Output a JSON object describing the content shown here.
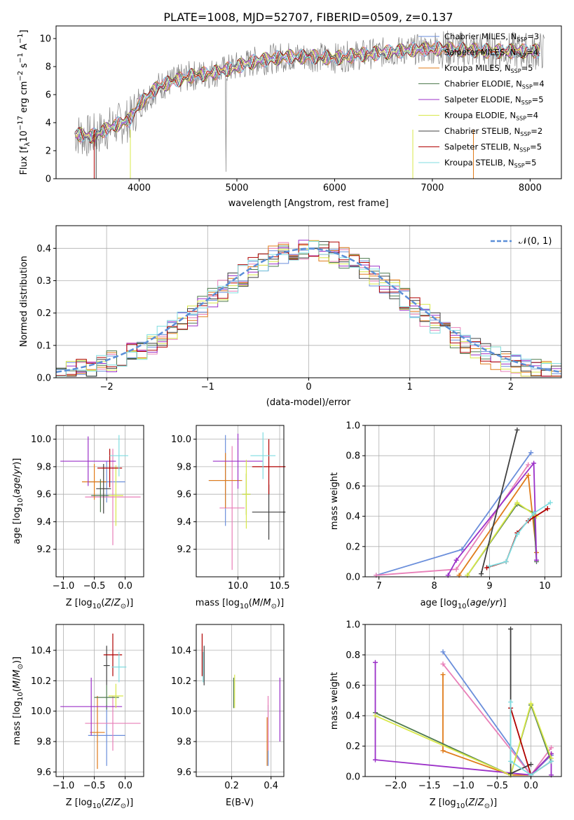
{
  "figure": {
    "title": "PLATE=1008, MJD=52707, FIBERID=0509, z=0.137"
  },
  "colors": {
    "chabrier_miles": "#6a8edb",
    "salpeter_miles": "#e87fb8",
    "kroupa_miles": "#e07b1a",
    "chabrier_elodie": "#4e7a4e",
    "salpeter_elodie": "#9b30c8",
    "kroupa_elodie": "#d8e84a",
    "chabrier_stelib": "#404040",
    "salpeter_stelib": "#b00000",
    "kroupa_stelib": "#7fdde0",
    "data_spectrum": "#808080",
    "normal_curve": "#5b8fd8",
    "grid": "#b0b0b0"
  },
  "legend": {
    "entries": [
      {
        "label": "Chabrier MILES, N",
        "sub": "SSP",
        "tail": "=3",
        "color": "#6a8edb"
      },
      {
        "label": "Salpeter MILES, N",
        "sub": "SSP",
        "tail": "=4",
        "color": "#e87fb8"
      },
      {
        "label": "Kroupa MILES, N",
        "sub": "SSP",
        "tail": "=5",
        "color": "#e07b1a"
      },
      {
        "label": "Chabrier ELODIE, N",
        "sub": "SSP",
        "tail": "=4",
        "color": "#4e7a4e"
      },
      {
        "label": "Salpeter ELODIE, N",
        "sub": "SSP",
        "tail": "=5",
        "color": "#9b30c8"
      },
      {
        "label": "Kroupa ELODIE, N",
        "sub": "SSP",
        "tail": "=4",
        "color": "#d8e84a"
      },
      {
        "label": "Chabrier STELIB, N",
        "sub": "SSP",
        "tail": "=2",
        "color": "#404040"
      },
      {
        "label": "Salpeter STELIB, N",
        "sub": "SSP",
        "tail": "=5",
        "color": "#b00000"
      },
      {
        "label": "Kroupa STELIB, N",
        "sub": "SSP",
        "tail": "=5",
        "color": "#7fdde0"
      }
    ],
    "normal_label": "𝒩(0, 1)"
  },
  "chart_data": [
    {
      "id": "spectrum",
      "type": "line",
      "xlabel": "wavelength [Angstrom, rest frame]",
      "ylabel": "Flux [f",
      "ylabel_parts": {
        "lambda": "λ",
        "tenpow": "10",
        "exp": "−17",
        "units": " erg cm",
        "m2": "−2",
        "s": " s",
        "m1": "−1",
        "A": " A",
        "m1b": "−1",
        "close": "]"
      },
      "xlim": [
        3150,
        8320
      ],
      "ylim": [
        0,
        10.9
      ],
      "xticks": [
        4000,
        5000,
        6000,
        7000,
        8000
      ],
      "yticks": [
        0,
        2,
        4,
        6,
        8,
        10
      ],
      "continuum_knots": [
        [
          3350,
          3.2
        ],
        [
          3500,
          3.0
        ],
        [
          3600,
          3.3
        ],
        [
          3750,
          3.8
        ],
        [
          3900,
          4.2
        ],
        [
          4000,
          5.3
        ],
        [
          4200,
          6.6
        ],
        [
          4500,
          7.3
        ],
        [
          4800,
          7.6
        ],
        [
          5000,
          8.0
        ],
        [
          5200,
          8.4
        ],
        [
          5500,
          8.7
        ],
        [
          5800,
          8.7
        ],
        [
          6000,
          8.6
        ],
        [
          6200,
          8.8
        ],
        [
          6500,
          9.0
        ],
        [
          6800,
          9.2
        ],
        [
          7000,
          9.3
        ],
        [
          7300,
          9.2
        ],
        [
          7600,
          9.1
        ],
        [
          7900,
          9.1
        ],
        [
          8100,
          9.1
        ]
      ],
      "data_range": [
        3340,
        8150
      ],
      "model_range": [
        3350,
        8100
      ]
    },
    {
      "id": "residual_histogram",
      "type": "histogram",
      "xlabel": "(data-model)/error",
      "ylabel": "Normed distribution",
      "xlim": [
        -2.5,
        2.5
      ],
      "ylim": [
        0,
        0.47
      ],
      "xticks": [
        -2,
        -1,
        0,
        1,
        2
      ],
      "yticks": [
        0.0,
        0.1,
        0.2,
        0.3,
        0.4
      ],
      "bin_width": 0.1,
      "normal": {
        "mu": 0,
        "sigma": 1
      }
    },
    {
      "id": "age_vs_Z",
      "type": "errorbar",
      "xlabel": "Z [log10(Z/Z⊙)]",
      "ylabel": "age  [log10(age/yr)]",
      "xlim": [
        -1.12,
        0.3
      ],
      "ylim": [
        9.0,
        10.1
      ],
      "xticks": [
        -1.0,
        -0.5,
        0.0
      ],
      "yticks": [
        9.2,
        9.4,
        9.6,
        9.8,
        10.0
      ],
      "points": [
        {
          "series": "chabrier_miles",
          "x": -0.3,
          "xerr": 0.3,
          "y": 9.69,
          "yerr": 0.15
        },
        {
          "series": "salpeter_miles",
          "x": -0.2,
          "xerr": 0.45,
          "y": 9.58,
          "yerr": 0.35
        },
        {
          "series": "kroupa_miles",
          "x": -0.5,
          "xerr": 0.2,
          "y": 9.69,
          "yerr": 0.13
        },
        {
          "series": "chabrier_elodie",
          "x": -0.4,
          "xerr": 0.15,
          "y": 9.59,
          "yerr": 0.12
        },
        {
          "series": "salpeter_elodie",
          "x": -0.6,
          "xerr": 0.45,
          "y": 9.84,
          "yerr": 0.18
        },
        {
          "series": "kroupa_elodie",
          "x": -0.15,
          "xerr": 0.12,
          "y": 9.59,
          "yerr": 0.22
        },
        {
          "series": "chabrier_stelib",
          "x": -0.35,
          "xerr": 0.12,
          "y": 9.64,
          "yerr": 0.18
        },
        {
          "series": "salpeter_stelib",
          "x": -0.25,
          "xerr": 0.2,
          "y": 9.79,
          "yerr": 0.14
        },
        {
          "series": "kroupa_stelib",
          "x": -0.1,
          "xerr": 0.15,
          "y": 9.88,
          "yerr": 0.15
        }
      ]
    },
    {
      "id": "age_vs_mass",
      "type": "errorbar",
      "xlabel": "mass [log10(M/M⊙)]",
      "ylabel": "",
      "xlim": [
        9.5,
        10.55
      ],
      "ylim": [
        9.0,
        10.1
      ],
      "xticks": [
        10.0,
        10.5
      ],
      "yticks": [
        9.2,
        9.4,
        9.6,
        9.8,
        10.0
      ],
      "points": [
        {
          "series": "chabrier_miles",
          "x": 9.85,
          "xerr": 0.2,
          "y": 9.7,
          "yerr": 0.33
        },
        {
          "series": "salpeter_miles",
          "x": 9.93,
          "xerr": 0.15,
          "y": 9.5,
          "yerr": 0.45
        },
        {
          "series": "kroupa_miles",
          "x": 9.85,
          "xerr": 0.2,
          "y": 9.7,
          "yerr": 0.2
        },
        {
          "series": "chabrier_elodie",
          "x": 10.1,
          "xerr": 0.05,
          "y": 9.6,
          "yerr": 0.15
        },
        {
          "series": "salpeter_elodie",
          "x": 10.0,
          "xerr": 0.3,
          "y": 9.84,
          "yerr": 0.2
        },
        {
          "series": "kroupa_elodie",
          "x": 10.1,
          "xerr": 0.05,
          "y": 9.6,
          "yerr": 0.25
        },
        {
          "series": "chabrier_stelib",
          "x": 10.37,
          "xerr": 0.2,
          "y": 9.47,
          "yerr": 0.2
        },
        {
          "series": "salpeter_stelib",
          "x": 10.37,
          "xerr": 0.2,
          "y": 9.8,
          "yerr": 0.2
        },
        {
          "series": "kroupa_stelib",
          "x": 10.3,
          "xerr": 0.15,
          "y": 9.88,
          "yerr": 0.17
        }
      ]
    },
    {
      "id": "weight_vs_age",
      "type": "line",
      "xlabel": "age  [log10(age/yr)]",
      "ylabel": "mass weight",
      "xlim": [
        6.75,
        10.3
      ],
      "ylim": [
        0,
        1.0
      ],
      "xticks": [
        7,
        8,
        9,
        10
      ],
      "yticks": [
        0.0,
        0.2,
        0.4,
        0.6,
        0.8,
        1.0
      ],
      "series": [
        {
          "name": "chabrier_miles",
          "points": [
            [
              6.95,
              0.01
            ],
            [
              8.5,
              0.18
            ],
            [
              9.75,
              0.82
            ]
          ]
        },
        {
          "name": "salpeter_miles",
          "points": [
            [
              6.95,
              0.01
            ],
            [
              8.4,
              0.05
            ],
            [
              9.7,
              0.74
            ]
          ]
        },
        {
          "name": "kroupa_miles",
          "points": [
            [
              8.45,
              0.01
            ],
            [
              9.7,
              0.67
            ],
            [
              9.85,
              0.16
            ]
          ]
        },
        {
          "name": "chabrier_elodie",
          "points": [
            [
              8.6,
              0.01
            ],
            [
              9.5,
              0.48
            ],
            [
              9.8,
              0.42
            ],
            [
              9.85,
              0.1
            ]
          ]
        },
        {
          "name": "salpeter_elodie",
          "points": [
            [
              8.25,
              0.01
            ],
            [
              8.4,
              0.11
            ],
            [
              9.8,
              0.75
            ],
            [
              9.85,
              0.11
            ]
          ]
        },
        {
          "name": "kroupa_elodie",
          "points": [
            [
              8.6,
              0.01
            ],
            [
              9.5,
              0.49
            ],
            [
              9.85,
              0.4
            ]
          ]
        },
        {
          "name": "chabrier_stelib",
          "points": [
            [
              8.85,
              0.02
            ],
            [
              9.5,
              0.97
            ]
          ]
        },
        {
          "name": "salpeter_stelib",
          "points": [
            [
              8.95,
              0.06
            ],
            [
              9.3,
              0.1
            ],
            [
              9.5,
              0.29
            ],
            [
              9.7,
              0.37
            ],
            [
              10.05,
              0.45
            ]
          ]
        },
        {
          "name": "kroupa_stelib",
          "points": [
            [
              9.0,
              0.07
            ],
            [
              9.3,
              0.1
            ],
            [
              9.5,
              0.28
            ],
            [
              9.8,
              0.42
            ],
            [
              10.1,
              0.49
            ]
          ]
        }
      ]
    },
    {
      "id": "mass_vs_Z",
      "type": "errorbar",
      "xlabel": "Z [log10(Z/Z⊙)]",
      "ylabel": "mass [log10(M/M⊙)]",
      "xlim": [
        -1.12,
        0.3
      ],
      "ylim": [
        9.57,
        10.57
      ],
      "xticks": [
        -1.0,
        -0.5,
        0.0
      ],
      "yticks": [
        9.6,
        9.8,
        10.0,
        10.2,
        10.4
      ],
      "points": [
        {
          "series": "chabrier_miles",
          "x": -0.3,
          "xerr": 0.3,
          "y": 9.84,
          "yerr": 0.2
        },
        {
          "series": "salpeter_miles",
          "x": -0.2,
          "xerr": 0.45,
          "y": 9.92,
          "yerr": 0.18
        },
        {
          "series": "kroupa_miles",
          "x": -0.45,
          "xerr": 0.12,
          "y": 9.86,
          "yerr": 0.24
        },
        {
          "series": "chabrier_elodie",
          "x": -0.3,
          "xerr": 0.2,
          "y": 10.09,
          "yerr": 0.08
        },
        {
          "series": "salpeter_elodie",
          "x": -0.55,
          "xerr": 0.5,
          "y": 10.03,
          "yerr": 0.19
        },
        {
          "series": "kroupa_elodie",
          "x": -0.15,
          "xerr": 0.12,
          "y": 10.1,
          "yerr": 0.08
        },
        {
          "series": "chabrier_stelib",
          "x": -0.3,
          "xerr": 0.05,
          "y": 10.3,
          "yerr": 0.13
        },
        {
          "series": "salpeter_stelib",
          "x": -0.2,
          "xerr": 0.15,
          "y": 10.37,
          "yerr": 0.14
        },
        {
          "series": "kroupa_stelib",
          "x": -0.1,
          "xerr": 0.12,
          "y": 10.29,
          "yerr": 0.1
        }
      ]
    },
    {
      "id": "mass_vs_ebv",
      "type": "errorbar",
      "xlabel": "E(B-V)",
      "ylabel": "",
      "xlim": [
        0.02,
        0.465
      ],
      "ylim": [
        9.57,
        10.57
      ],
      "xticks": [
        0.2,
        0.4
      ],
      "yticks": [
        9.6,
        9.8,
        10.0,
        10.2,
        10.4
      ],
      "points": [
        {
          "series": "chabrier_miles",
          "x": 0.385,
          "y": 9.84,
          "yerr": 0.2
        },
        {
          "series": "salpeter_miles",
          "x": 0.385,
          "y": 9.92,
          "yerr": 0.18
        },
        {
          "series": "kroupa_miles",
          "x": 0.38,
          "y": 9.8,
          "yerr": 0.16
        },
        {
          "series": "chabrier_elodie",
          "x": 0.21,
          "y": 10.12,
          "yerr": 0.1
        },
        {
          "series": "salpeter_elodie",
          "x": 0.445,
          "y": 10.01,
          "yerr": 0.21
        },
        {
          "series": "kroupa_elodie",
          "x": 0.215,
          "y": 10.13,
          "yerr": 0.11
        },
        {
          "series": "chabrier_stelib",
          "x": 0.06,
          "y": 10.3,
          "yerr": 0.13
        },
        {
          "series": "salpeter_stelib",
          "x": 0.05,
          "y": 10.37,
          "yerr": 0.14
        },
        {
          "series": "kroupa_stelib",
          "x": 0.055,
          "y": 10.29,
          "yerr": 0.1
        }
      ]
    },
    {
      "id": "weight_vs_Z",
      "type": "line",
      "xlabel": "Z [log10(Z/Z⊙)]",
      "ylabel": "mass weight",
      "xlim": [
        -2.45,
        0.45
      ],
      "ylim": [
        0,
        1.0
      ],
      "xticks": [
        -2.0,
        -1.5,
        -1.0,
        -0.5,
        0.0
      ],
      "yticks": [
        0.0,
        0.2,
        0.4,
        0.6,
        0.8,
        1.0
      ],
      "series": [
        {
          "name": "chabrier_miles",
          "points": [
            [
              -1.3,
              0.82
            ],
            [
              0.0,
              0.01
            ],
            [
              0.3,
              0.14
            ]
          ]
        },
        {
          "name": "salpeter_miles",
          "points": [
            [
              -1.3,
              0.74
            ],
            [
              0.0,
              0.01
            ],
            [
              0.3,
              0.19
            ]
          ]
        },
        {
          "name": "kroupa_miles",
          "points": [
            [
              -1.3,
              0.67
            ],
            [
              -1.3,
              0.17
            ],
            [
              -0.3,
              0.01
            ],
            [
              0.0,
              0.01
            ],
            [
              0.3,
              0.15
            ]
          ]
        },
        {
          "name": "chabrier_elodie",
          "points": [
            [
              -2.3,
              0.42
            ],
            [
              -0.3,
              0.01
            ],
            [
              0.0,
              0.47
            ],
            [
              0.3,
              0.1
            ]
          ]
        },
        {
          "name": "salpeter_elodie",
          "points": [
            [
              -2.3,
              0.75
            ],
            [
              -2.3,
              0.11
            ],
            [
              0.0,
              0.01
            ],
            [
              0.3,
              0.15
            ],
            [
              0.3,
              0.01
            ]
          ]
        },
        {
          "name": "kroupa_elodie",
          "points": [
            [
              -2.3,
              0.4
            ],
            [
              -0.3,
              0.01
            ],
            [
              0.0,
              0.48
            ],
            [
              0.3,
              0.12
            ]
          ]
        },
        {
          "name": "chabrier_stelib",
          "points": [
            [
              -0.3,
              0.97
            ],
            [
              -0.3,
              0.02
            ],
            [
              0.0,
              0.08
            ]
          ]
        },
        {
          "name": "salpeter_stelib",
          "points": [
            [
              -0.3,
              0.45
            ],
            [
              0.0,
              0.01
            ],
            [
              0.3,
              0.1
            ]
          ]
        },
        {
          "name": "kroupa_stelib",
          "points": [
            [
              -0.3,
              0.49
            ],
            [
              -0.3,
              0.1
            ],
            [
              0.0,
              0.01
            ],
            [
              0.3,
              0.1
            ]
          ]
        }
      ]
    }
  ]
}
